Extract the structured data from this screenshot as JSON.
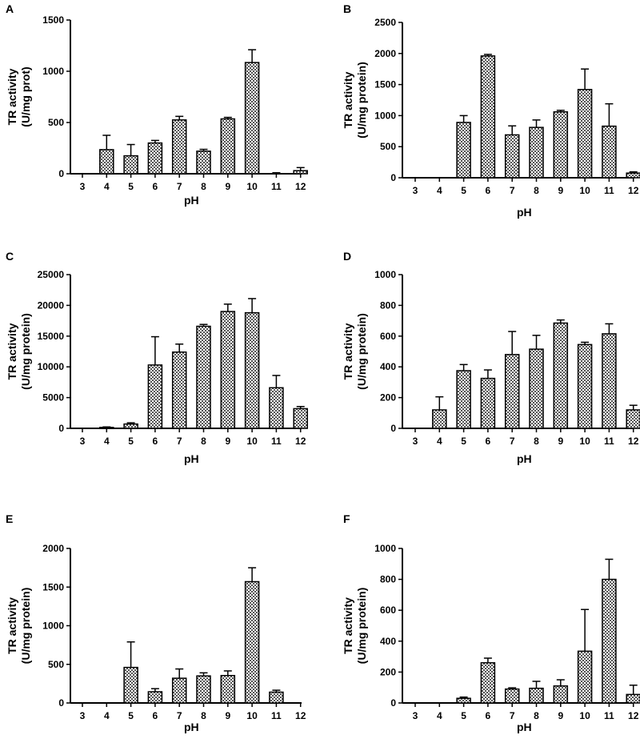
{
  "colors": {
    "bar_fill": "#b8b8b8",
    "bar_stroke": "#000000",
    "axis": "#000000",
    "background": "#ffffff"
  },
  "chart_data": [
    {
      "panel": "A",
      "type": "bar",
      "title": "",
      "xlabel": "pH",
      "ylabel_line1": "TR activity",
      "ylabel_line2": "(U/mg prot)",
      "categories": [
        "3",
        "4",
        "5",
        "6",
        "7",
        "8",
        "9",
        "10",
        "11",
        "12"
      ],
      "values": [
        0,
        235,
        175,
        300,
        525,
        220,
        535,
        1085,
        0,
        30
      ],
      "errors": [
        0,
        140,
        110,
        25,
        35,
        18,
        15,
        125,
        10,
        30
      ],
      "ylim": [
        0,
        1500
      ],
      "yticks": [
        0,
        500,
        1000,
        1500
      ],
      "ytick_labels": [
        "0",
        "500",
        "1000",
        "1500"
      ]
    },
    {
      "panel": "B",
      "type": "bar",
      "title": "",
      "xlabel": "pH",
      "ylabel_line1": "TR activity",
      "ylabel_line2": "(U/mg protein)",
      "categories": [
        "3",
        "4",
        "5",
        "6",
        "7",
        "8",
        "9",
        "10",
        "11",
        "12"
      ],
      "values": [
        0,
        0,
        890,
        1960,
        690,
        810,
        1060,
        1420,
        830,
        75
      ],
      "errors": [
        0,
        0,
        110,
        25,
        145,
        120,
        25,
        330,
        360,
        20
      ],
      "ylim": [
        0,
        2500
      ],
      "yticks": [
        0,
        500,
        1000,
        1500,
        2000,
        2500
      ],
      "ytick_labels": [
        "0",
        "500",
        "1000",
        "1500",
        "2000",
        "2500"
      ]
    },
    {
      "panel": "C",
      "type": "bar",
      "title": "",
      "xlabel": "pH",
      "ylabel_line1": "TR activity",
      "ylabel_line2": "(U/mg protein)",
      "categories": [
        "3",
        "4",
        "5",
        "6",
        "7",
        "8",
        "9",
        "10",
        "11",
        "12"
      ],
      "values": [
        0,
        150,
        700,
        10300,
        12400,
        16600,
        19000,
        18800,
        6600,
        3200
      ],
      "errors": [
        0,
        80,
        200,
        4600,
        1300,
        300,
        1200,
        2300,
        2000,
        350
      ],
      "ylim": [
        0,
        25000
      ],
      "yticks": [
        0,
        5000,
        10000,
        15000,
        20000,
        25000
      ],
      "ytick_labels": [
        "0",
        "5000",
        "10000",
        "15000",
        "20000",
        "25000"
      ]
    },
    {
      "panel": "D",
      "type": "bar",
      "title": "",
      "xlabel": "pH",
      "ylabel_line1": "TR activity",
      "ylabel_line2": "(U/mg protein)",
      "categories": [
        "3",
        "4",
        "5",
        "6",
        "7",
        "8",
        "9",
        "10",
        "11",
        "12"
      ],
      "values": [
        0,
        120,
        375,
        325,
        480,
        515,
        685,
        545,
        615,
        120
      ],
      "errors": [
        0,
        85,
        40,
        55,
        150,
        90,
        20,
        15,
        65,
        30
      ],
      "ylim": [
        0,
        1000
      ],
      "yticks": [
        0,
        200,
        400,
        600,
        800,
        1000
      ],
      "ytick_labels": [
        "0",
        "200",
        "400",
        "600",
        "800",
        "1000"
      ]
    },
    {
      "panel": "E",
      "type": "bar",
      "title": "",
      "xlabel": "pH",
      "ylabel_line1": "TR activity",
      "ylabel_line2": "(U/mg protein)",
      "categories": [
        "3",
        "4",
        "5",
        "6",
        "7",
        "8",
        "9",
        "10",
        "11",
        "12"
      ],
      "values": [
        0,
        0,
        460,
        145,
        320,
        350,
        355,
        1570,
        140,
        0
      ],
      "errors": [
        0,
        0,
        330,
        40,
        120,
        40,
        60,
        180,
        25,
        0
      ],
      "ylim": [
        0,
        2000
      ],
      "yticks": [
        0,
        500,
        1000,
        1500,
        2000
      ],
      "ytick_labels": [
        "0",
        "500",
        "1000",
        "1500",
        "2000"
      ]
    },
    {
      "panel": "F",
      "type": "bar",
      "title": "",
      "xlabel": "pH",
      "ylabel_line1": "TR activity",
      "ylabel_line2": "(U/mg protein)",
      "categories": [
        "3",
        "4",
        "5",
        "6",
        "7",
        "8",
        "9",
        "10",
        "11",
        "12"
      ],
      "values": [
        0,
        0,
        30,
        260,
        90,
        95,
        110,
        335,
        800,
        55
      ],
      "errors": [
        0,
        0,
        8,
        30,
        8,
        45,
        40,
        270,
        130,
        60
      ],
      "ylim": [
        0,
        1000
      ],
      "yticks": [
        0,
        200,
        400,
        600,
        800,
        1000
      ],
      "ytick_labels": [
        "0",
        "200",
        "400",
        "600",
        "800",
        "1000"
      ]
    }
  ]
}
